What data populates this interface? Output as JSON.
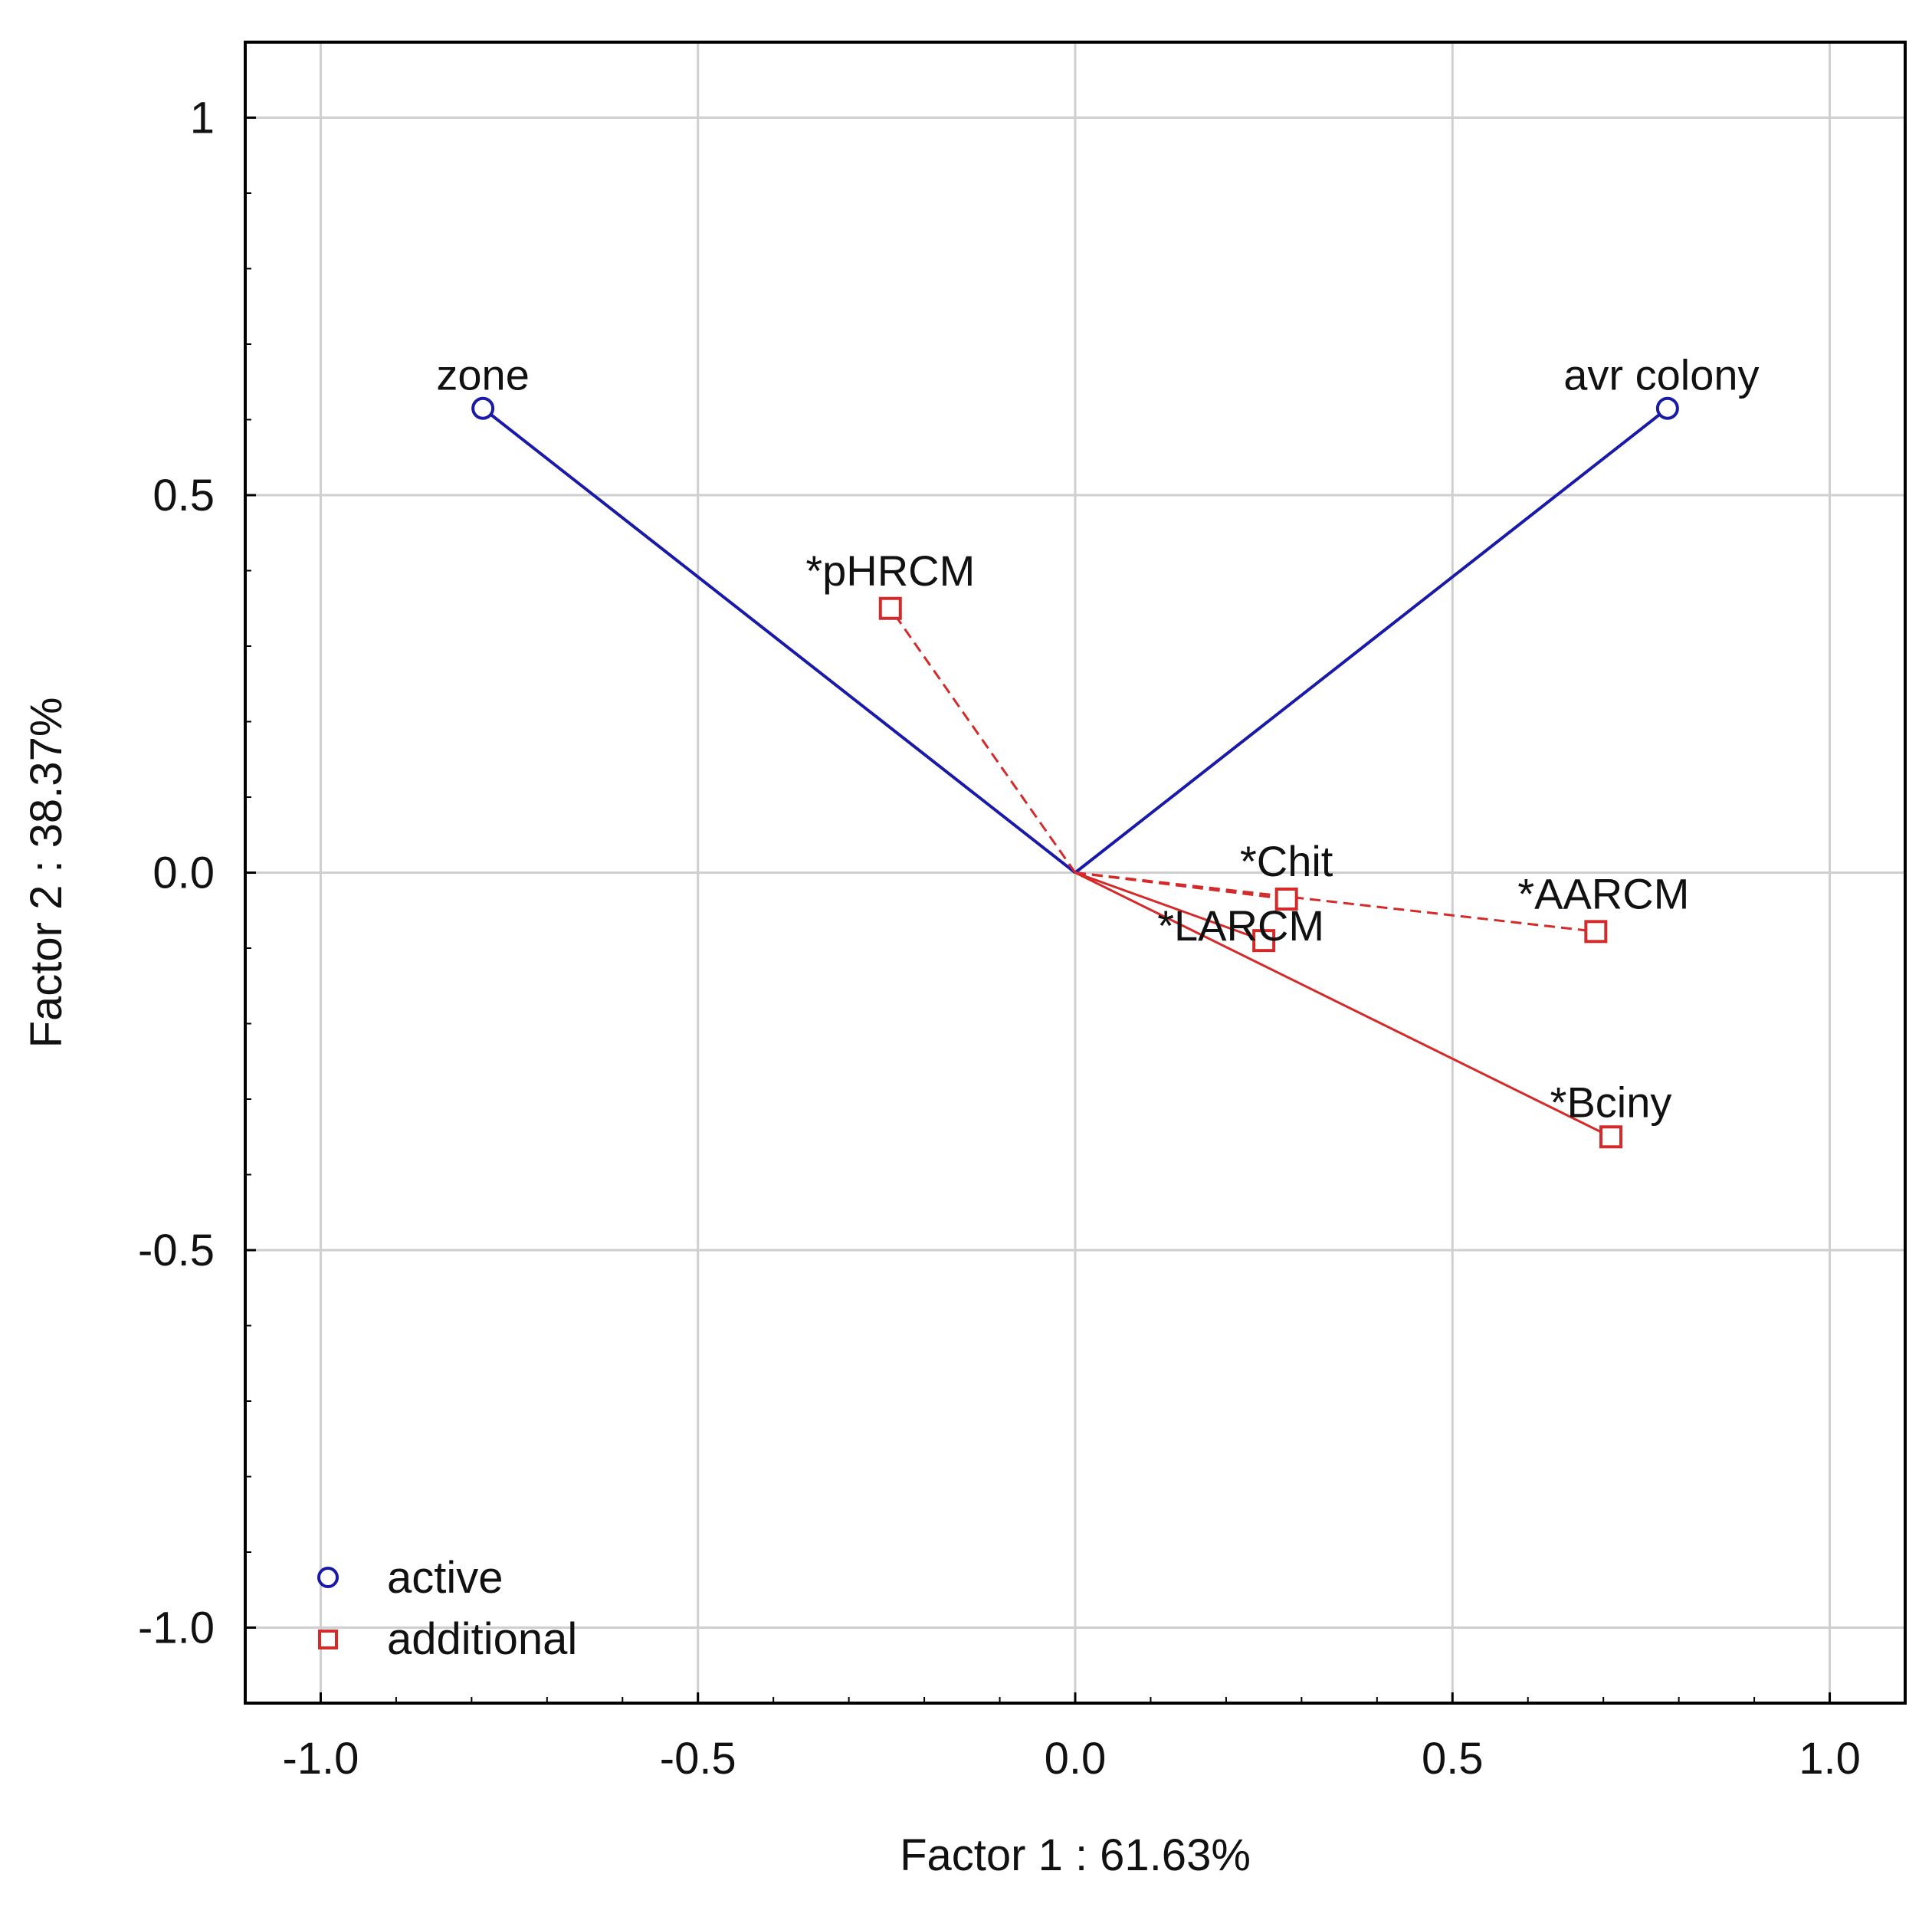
{
  "chart_data": {
    "type": "scatter",
    "subtype": "factor-loading-biplot",
    "xlabel": "Factor 1 : 61.63%",
    "ylabel": "Factor 2 : 38.37%",
    "xlim": [
      -1.1,
      1.1
    ],
    "ylim": [
      -1.1,
      1.1
    ],
    "xticks": [
      {
        "value": -1.0,
        "label": "-1.0"
      },
      {
        "value": -0.5,
        "label": "-0.5"
      },
      {
        "value": 0.0,
        "label": "0.0"
      },
      {
        "value": 0.5,
        "label": "0.5"
      },
      {
        "value": 1.0,
        "label": "1.0"
      }
    ],
    "yticks": [
      {
        "value": 1.0,
        "label": "1"
      },
      {
        "value": 0.5,
        "label": "0.5"
      },
      {
        "value": 0.0,
        "label": "0.0"
      },
      {
        "value": -0.5,
        "label": "-0.5"
      },
      {
        "value": -1.0,
        "label": "-1.0"
      }
    ],
    "grid": true,
    "legend_position": "bottom-left",
    "series": [
      {
        "name": "active",
        "marker": "circle",
        "color": "#1a1aa8",
        "line_style": "solid",
        "points": [
          {
            "label": "zone",
            "x": -0.785,
            "y": 0.615
          },
          {
            "label": "avr colony",
            "x": 0.785,
            "y": 0.615
          }
        ]
      },
      {
        "name": "additional",
        "marker": "square",
        "color": "#d42a2a",
        "points": [
          {
            "label": "*pHRCM",
            "x": -0.245,
            "y": 0.35,
            "line_style": "dashed"
          },
          {
            "label": "*Chit",
            "x": 0.28,
            "y": -0.035,
            "line_style": "dashed"
          },
          {
            "label": "*LARCM",
            "x": 0.25,
            "y": -0.09,
            "line_style": "solid"
          },
          {
            "label": "*AARCM",
            "x": 0.69,
            "y": -0.078,
            "line_style": "dashed"
          },
          {
            "label": "*Bciny",
            "x": 0.71,
            "y": -0.35,
            "line_style": "solid"
          }
        ]
      }
    ]
  }
}
